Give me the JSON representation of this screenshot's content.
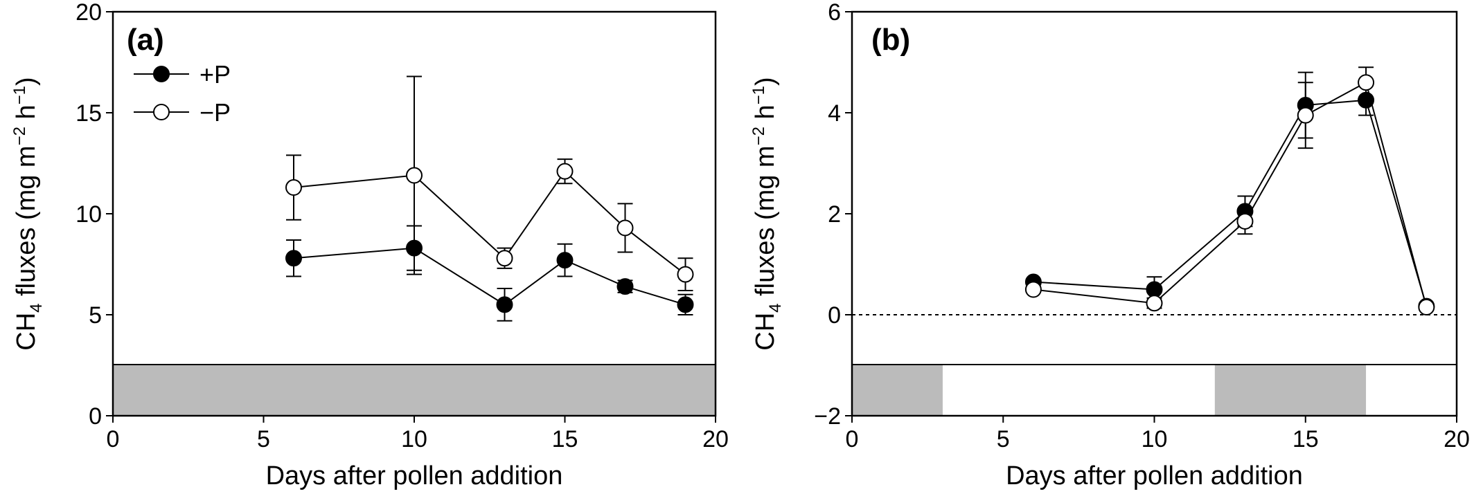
{
  "chart_data": [
    {
      "type": "line",
      "panel_label": "(a)",
      "xlabel": "Days after pollen addition",
      "ylabel": {
        "main": "CH",
        "sub": "4",
        "rest": " fluxes (mg m",
        "sup1": "−2",
        "mid": " h",
        "sup2": "−1",
        "close": ")"
      },
      "xlim": [
        0,
        20
      ],
      "ylim": [
        0,
        20
      ],
      "x_ticks": [
        0,
        5,
        10,
        15,
        20
      ],
      "y_ticks": [
        0,
        5,
        10,
        15,
        20
      ],
      "grid": false,
      "legend": {
        "placement": "top-left",
        "entries": [
          "+P",
          "−P"
        ]
      },
      "x": [
        6,
        10,
        13,
        15,
        17,
        19
      ],
      "series": [
        {
          "name": "+P",
          "marker": "filled-circle",
          "color": "#000000",
          "values": [
            7.8,
            8.3,
            5.5,
            7.7,
            6.4,
            5.5
          ],
          "errors": [
            0.9,
            1.1,
            0.8,
            0.8,
            0.3,
            0.5
          ]
        },
        {
          "name": "−P",
          "marker": "open-circle",
          "color": "#000000",
          "values": [
            11.3,
            11.9,
            7.8,
            12.1,
            9.3,
            7.0
          ],
          "errors": [
            1.6,
            4.9,
            0.5,
            0.6,
            1.2,
            0.8
          ]
        }
      ],
      "shaded_bands": [
        {
          "x_from": 0,
          "x_to": 20,
          "color": "#bbbbbb"
        }
      ]
    },
    {
      "type": "line",
      "panel_label": "(b)",
      "xlabel": "Days after pollen addition",
      "ylabel": {
        "main": "CH",
        "sub": "4",
        "rest": " fluxes (mg m",
        "sup1": "−2",
        "mid": " h",
        "sup2": "−1",
        "close": ")"
      },
      "xlim": [
        0,
        20
      ],
      "ylim": [
        -2,
        6
      ],
      "x_ticks": [
        0,
        5,
        10,
        15,
        20
      ],
      "y_ticks": [
        -2,
        0,
        2,
        4,
        6
      ],
      "y_tick_labels": [
        "−2",
        "0",
        "2",
        "4",
        "6"
      ],
      "grid": false,
      "reference_line": {
        "y": 0,
        "style": "dotted"
      },
      "x": [
        6,
        10,
        13,
        15,
        17,
        19
      ],
      "series": [
        {
          "name": "+P",
          "marker": "filled-circle",
          "color": "#000000",
          "values": [
            0.65,
            0.5,
            2.05,
            4.15,
            4.25,
            0.17
          ],
          "errors": [
            0.05,
            0.25,
            0.3,
            0.65,
            0.3,
            0.05
          ]
        },
        {
          "name": "−P",
          "marker": "open-circle",
          "color": "#000000",
          "values": [
            0.5,
            0.23,
            1.85,
            3.95,
            4.6,
            0.15
          ],
          "errors": [
            0.05,
            0.1,
            0.25,
            0.65,
            0.3,
            0.05
          ]
        }
      ],
      "shaded_bands": [
        {
          "x_from": 0,
          "x_to": 3,
          "color": "#bbbbbb"
        },
        {
          "x_from": 12,
          "x_to": 17,
          "color": "#bbbbbb"
        }
      ]
    }
  ]
}
